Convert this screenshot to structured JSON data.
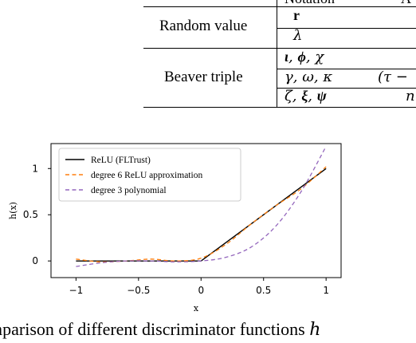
{
  "table": {
    "header_notation": "Notation",
    "header_clipped": "A",
    "groups": [
      {
        "label": "Random value",
        "rows": [
          {
            "notation_parts": [
              {
                "text": "r",
                "style": "bold"
              }
            ],
            "extra": ""
          },
          {
            "notation_parts": [
              {
                "text": "λ",
                "style": "math"
              }
            ],
            "extra": ""
          }
        ]
      },
      {
        "label": "Beaver triple",
        "rows": [
          {
            "notation_parts": [
              {
                "text": "ι",
                "style": "bi"
              },
              {
                "text": ", ",
                "style": "math"
              },
              {
                "text": "ϕ",
                "style": "bi"
              },
              {
                "text": ", χ",
                "style": "math"
              }
            ],
            "extra": ""
          },
          {
            "notation_parts": [
              {
                "text": "γ, ω, κ",
                "style": "math"
              }
            ],
            "extra": "(τ −"
          },
          {
            "notation_parts": [
              {
                "text": "ζ, ",
                "style": "math"
              },
              {
                "text": "ξ",
                "style": "bi"
              },
              {
                "text": ", ",
                "style": "math"
              },
              {
                "text": "ψ",
                "style": "bi"
              }
            ],
            "extra": "n"
          }
        ]
      }
    ]
  },
  "chart_data": {
    "type": "line",
    "xlabel": "x",
    "ylabel": "h(x)",
    "xlim": [
      -1.2,
      1.12
    ],
    "ylim": [
      -0.18,
      1.27
    ],
    "xticks": [
      -1,
      -0.5,
      0,
      0.5,
      1
    ],
    "xtick_labels": [
      "−1",
      "−0.5",
      "0",
      "0.5",
      "1"
    ],
    "yticks": [
      0,
      0.5,
      1
    ],
    "ytick_labels": [
      "0",
      "0.5",
      "1"
    ],
    "legend_position": "top-left",
    "series": [
      {
        "name": "ReLU (FLTrust)",
        "color": "#000000",
        "dash": "solid",
        "x": [
          -1,
          -0.5,
          0,
          0.5,
          1
        ],
        "y": [
          0,
          0,
          0,
          0.5,
          1
        ]
      },
      {
        "name": "degree 6 ReLU approximation",
        "color": "#ff7f0e",
        "dash": "dashed",
        "x": [
          -1,
          -0.8,
          -0.6,
          -0.4,
          -0.2,
          0,
          0.2,
          0.4,
          0.6,
          0.8,
          1
        ],
        "y": [
          0.02,
          -0.01,
          0.0,
          0.02,
          0.0,
          0.03,
          0.18,
          0.4,
          0.6,
          0.78,
          1.02
        ]
      },
      {
        "name": "degree 3 polynomial",
        "color": "#9467bd",
        "dash": "dashed",
        "x": [
          -1,
          -0.8,
          -0.6,
          -0.4,
          -0.2,
          0,
          0.2,
          0.4,
          0.6,
          0.8,
          1
        ],
        "y": [
          -0.06,
          -0.02,
          0.0,
          0.0,
          -0.01,
          0.0,
          0.04,
          0.15,
          0.38,
          0.75,
          1.24
        ]
      }
    ]
  },
  "caption": {
    "prefix": "mparison of different discriminator functions ",
    "symbol": "h"
  }
}
